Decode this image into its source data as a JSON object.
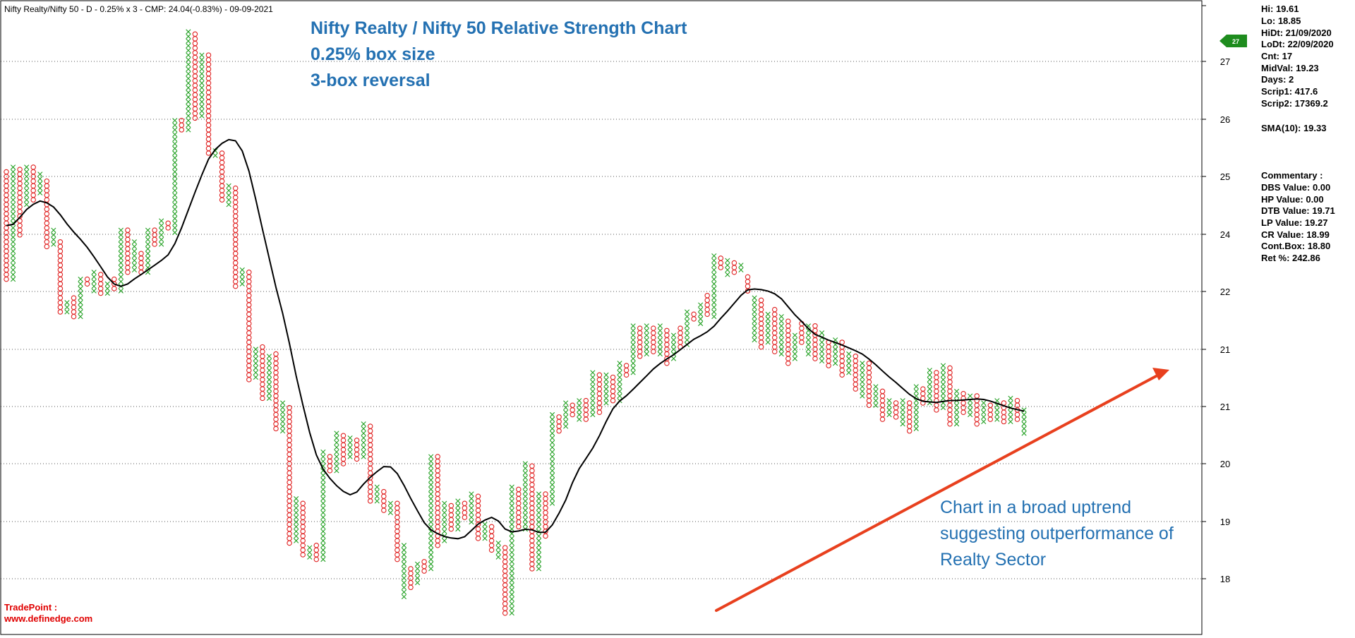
{
  "header": {
    "info_line": "Nifty Realty/Nifty 50 - D - 0.25% x 3 - CMP: 24.04(-0.83%) - 09-09-2021"
  },
  "title_lines": [
    "Nifty Realty / Nifty 50 Relative Strength Chart",
    "0.25% box size",
    "3-box reversal"
  ],
  "annotation_lines": [
    "Chart in a broad uptrend",
    "suggesting outperformance of",
    "Realty Sector"
  ],
  "brand_lines": [
    "TradePoint :",
    "www.definedge.com"
  ],
  "cmp_tag": "27",
  "stats": {
    "hi": "Hi: 19.61",
    "lo": "Lo: 18.85",
    "hidt": "HiDt: 21/09/2020",
    "lodt": "LoDt: 22/09/2020",
    "cnt": "Cnt: 17",
    "midval": "MidVal: 19.23",
    "days": "Days: 2",
    "scrip1": "Scrip1: 417.6",
    "scrip2": "Scrip2: 17369.2",
    "sma": "SMA(10): 19.33"
  },
  "commentary": {
    "heading": "Commentary :",
    "dbs": "DBS Value:  0.00",
    "hp": "HP Value: 0.00",
    "dtb": "DTB Value: 19.71",
    "lp": "LP Value: 19.27",
    "cr": "CR Value: 18.99",
    "cont": "Cont.Box: 18.80",
    "ret": "Ret %: 242.86"
  },
  "colors": {
    "x_column": "#22a022",
    "o_column": "#e02020",
    "sma_line": "#000000",
    "arrow": "#e8401e",
    "title": "#2471b2",
    "brand": "#e00000",
    "tag": "#1e8c1e"
  },
  "chart_data": {
    "type": "point-and-figure",
    "box_size": "0.25%",
    "reversal": 3,
    "y_ticks": [
      "27",
      "26",
      "25",
      "24",
      "22",
      "21",
      "21",
      "20",
      "19",
      "18"
    ],
    "grid": true,
    "columns": [
      {
        "type": "O",
        "high": 24.5,
        "low": 22.2
      },
      {
        "type": "X",
        "high": 24.6,
        "low": 22.2
      },
      {
        "type": "O",
        "high": 24.55,
        "low": 23.1
      },
      {
        "type": "X",
        "high": 24.6,
        "low": 23.8
      },
      {
        "type": "O",
        "high": 24.6,
        "low": 23.9
      },
      {
        "type": "X",
        "high": 24.45,
        "low": 24.0
      },
      {
        "type": "O",
        "high": 24.3,
        "low": 22.9
      },
      {
        "type": "X",
        "high": 23.25,
        "low": 23.0
      },
      {
        "type": "O",
        "high": 23.0,
        "low": 21.5
      },
      {
        "type": "X",
        "high": 21.7,
        "low": 21.5
      },
      {
        "type": "O",
        "high": 21.8,
        "low": 21.45
      },
      {
        "type": "X",
        "high": 22.2,
        "low": 21.45
      },
      {
        "type": "O",
        "high": 22.2,
        "low": 22.05
      },
      {
        "type": "X",
        "high": 22.35,
        "low": 22.0
      },
      {
        "type": "O",
        "high": 22.3,
        "low": 21.95
      },
      {
        "type": "X",
        "high": 22.1,
        "low": 21.95
      },
      {
        "type": "O",
        "high": 22.2,
        "low": 22.0
      },
      {
        "type": "X",
        "high": 23.25,
        "low": 22.0
      },
      {
        "type": "O",
        "high": 23.25,
        "low": 22.3
      },
      {
        "type": "X",
        "high": 23.0,
        "low": 22.35
      },
      {
        "type": "O",
        "high": 22.75,
        "low": 22.4
      },
      {
        "type": "X",
        "high": 23.25,
        "low": 22.4
      },
      {
        "type": "O",
        "high": 23.25,
        "low": 22.95
      },
      {
        "type": "X",
        "high": 23.45,
        "low": 22.95
      },
      {
        "type": "O",
        "high": 23.4,
        "low": 23.25
      },
      {
        "type": "X",
        "high": 25.6,
        "low": 23.25
      },
      {
        "type": "O",
        "high": 25.6,
        "low": 25.4
      },
      {
        "type": "X",
        "high": 27.5,
        "low": 25.4
      },
      {
        "type": "O",
        "high": 27.45,
        "low": 25.7
      },
      {
        "type": "X",
        "high": 27.0,
        "low": 25.7
      },
      {
        "type": "O",
        "high": 27.0,
        "low": 24.95
      },
      {
        "type": "X",
        "high": 24.95,
        "low": 24.85
      },
      {
        "type": "O",
        "high": 24.9,
        "low": 23.9
      },
      {
        "type": "X",
        "high": 24.2,
        "low": 23.8
      },
      {
        "type": "O",
        "high": 24.15,
        "low": 22.0
      },
      {
        "type": "X",
        "high": 22.4,
        "low": 22.05
      },
      {
        "type": "O",
        "high": 22.35,
        "low": 20.05
      },
      {
        "type": "X",
        "high": 20.7,
        "low": 20.1
      },
      {
        "type": "O",
        "high": 20.75,
        "low": 19.65
      },
      {
        "type": "X",
        "high": 20.55,
        "low": 19.6
      },
      {
        "type": "O",
        "high": 20.6,
        "low": 19.0
      },
      {
        "type": "X",
        "high": 19.55,
        "low": 19.0
      },
      {
        "type": "O",
        "high": 19.45,
        "low": 16.55
      },
      {
        "type": "X",
        "high": 17.5,
        "low": 16.55
      },
      {
        "type": "O",
        "high": 17.4,
        "low": 16.3
      },
      {
        "type": "X",
        "high": 16.45,
        "low": 16.25
      },
      {
        "type": "O",
        "high": 16.5,
        "low": 16.25
      },
      {
        "type": "X",
        "high": 18.5,
        "low": 16.25
      },
      {
        "type": "O",
        "high": 18.4,
        "low": 18.05
      },
      {
        "type": "X",
        "high": 18.9,
        "low": 18.1
      },
      {
        "type": "O",
        "high": 18.85,
        "low": 18.3
      },
      {
        "type": "X",
        "high": 18.8,
        "low": 18.35
      },
      {
        "type": "O",
        "high": 18.75,
        "low": 18.4
      },
      {
        "type": "X",
        "high": 19.1,
        "low": 18.4
      },
      {
        "type": "O",
        "high": 19.05,
        "low": 17.5
      },
      {
        "type": "X",
        "high": 17.75,
        "low": 17.45
      },
      {
        "type": "O",
        "high": 17.65,
        "low": 17.2
      },
      {
        "type": "X",
        "high": 17.4,
        "low": 17.2
      },
      {
        "type": "O",
        "high": 17.4,
        "low": 16.2
      },
      {
        "type": "X",
        "high": 16.5,
        "low": 15.45
      },
      {
        "type": "O",
        "high": 16.0,
        "low": 15.55
      },
      {
        "type": "X",
        "high": 16.1,
        "low": 15.75
      },
      {
        "type": "O",
        "high": 16.15,
        "low": 15.95
      },
      {
        "type": "X",
        "high": 18.4,
        "low": 16.0
      },
      {
        "type": "O",
        "high": 18.4,
        "low": 16.5
      },
      {
        "type": "X",
        "high": 17.4,
        "low": 16.6
      },
      {
        "type": "O",
        "high": 17.35,
        "low": 16.85
      },
      {
        "type": "X",
        "high": 17.45,
        "low": 16.85
      },
      {
        "type": "O",
        "high": 17.4,
        "low": 17.05
      },
      {
        "type": "X",
        "high": 17.6,
        "low": 17.05
      },
      {
        "type": "O",
        "high": 17.55,
        "low": 16.7
      },
      {
        "type": "X",
        "high": 16.95,
        "low": 16.65
      },
      {
        "type": "O",
        "high": 16.9,
        "low": 16.35
      },
      {
        "type": "X",
        "high": 16.55,
        "low": 16.3
      },
      {
        "type": "O",
        "high": 16.45,
        "low": 15.0
      },
      {
        "type": "X",
        "high": 17.75,
        "low": 15.05
      },
      {
        "type": "O",
        "high": 17.7,
        "low": 16.85
      },
      {
        "type": "X",
        "high": 18.25,
        "low": 16.8
      },
      {
        "type": "O",
        "high": 18.2,
        "low": 16.0
      },
      {
        "type": "X",
        "high": 17.6,
        "low": 16.0
      },
      {
        "type": "O",
        "high": 17.6,
        "low": 16.7
      },
      {
        "type": "X",
        "high": 19.3,
        "low": 17.4
      },
      {
        "type": "O",
        "high": 19.25,
        "low": 19.0
      },
      {
        "type": "X",
        "high": 19.55,
        "low": 19.05
      },
      {
        "type": "O",
        "high": 19.5,
        "low": 19.3
      },
      {
        "type": "X",
        "high": 19.6,
        "low": 19.25
      },
      {
        "type": "O",
        "high": 19.6,
        "low": 19.25
      },
      {
        "type": "X",
        "high": 20.2,
        "low": 19.3
      },
      {
        "type": "O",
        "high": 20.15,
        "low": 19.4
      },
      {
        "type": "X",
        "high": 20.15,
        "low": 19.55
      },
      {
        "type": "O",
        "high": 20.1,
        "low": 19.6
      },
      {
        "type": "X",
        "high": 20.4,
        "low": 19.65
      },
      {
        "type": "O",
        "high": 20.35,
        "low": 20.15
      },
      {
        "type": "X",
        "high": 21.2,
        "low": 20.2
      },
      {
        "type": "O",
        "high": 21.15,
        "low": 20.5
      },
      {
        "type": "X",
        "high": 21.2,
        "low": 20.55
      },
      {
        "type": "O",
        "high": 21.15,
        "low": 20.6
      },
      {
        "type": "X",
        "high": 21.2,
        "low": 20.65
      },
      {
        "type": "O",
        "high": 21.1,
        "low": 20.4
      },
      {
        "type": "X",
        "high": 21.0,
        "low": 20.5
      },
      {
        "type": "O",
        "high": 21.15,
        "low": 20.7
      },
      {
        "type": "X",
        "high": 21.5,
        "low": 20.8
      },
      {
        "type": "O",
        "high": 21.45,
        "low": 21.3
      },
      {
        "type": "X",
        "high": 21.65,
        "low": 21.25
      },
      {
        "type": "O",
        "high": 21.85,
        "low": 21.5
      },
      {
        "type": "X",
        "high": 22.7,
        "low": 21.45
      },
      {
        "type": "O",
        "high": 22.65,
        "low": 22.45
      },
      {
        "type": "X",
        "high": 22.6,
        "low": 22.35
      },
      {
        "type": "O",
        "high": 22.55,
        "low": 22.35
      },
      {
        "type": "X",
        "high": 22.5,
        "low": 22.35
      },
      {
        "type": "O",
        "high": 22.25,
        "low": 21.95
      },
      {
        "type": "X",
        "high": 21.8,
        "low": 20.85
      },
      {
        "type": "O",
        "high": 21.75,
        "low": 20.75
      },
      {
        "type": "X",
        "high": 21.45,
        "low": 20.85
      },
      {
        "type": "O",
        "high": 21.55,
        "low": 20.6
      },
      {
        "type": "X",
        "high": 21.4,
        "low": 20.6
      },
      {
        "type": "O",
        "high": 21.3,
        "low": 20.4
      },
      {
        "type": "X",
        "high": 21.0,
        "low": 20.5
      },
      {
        "type": "O",
        "high": 21.25,
        "low": 20.8
      },
      {
        "type": "X",
        "high": 21.2,
        "low": 20.6
      },
      {
        "type": "O",
        "high": 21.2,
        "low": 20.5
      },
      {
        "type": "X",
        "high": 21.05,
        "low": 20.45
      },
      {
        "type": "O",
        "high": 20.85,
        "low": 20.35
      },
      {
        "type": "X",
        "high": 20.9,
        "low": 20.4
      },
      {
        "type": "O",
        "high": 20.85,
        "low": 20.2
      },
      {
        "type": "X",
        "high": 20.6,
        "low": 20.2
      },
      {
        "type": "O",
        "high": 20.55,
        "low": 19.9
      },
      {
        "type": "X",
        "high": 20.4,
        "low": 19.7
      },
      {
        "type": "O",
        "high": 20.4,
        "low": 19.5
      },
      {
        "type": "X",
        "high": 19.9,
        "low": 19.45
      },
      {
        "type": "O",
        "high": 19.8,
        "low": 19.25
      },
      {
        "type": "X",
        "high": 19.6,
        "low": 19.3
      },
      {
        "type": "O",
        "high": 19.55,
        "low": 19.3
      },
      {
        "type": "X",
        "high": 19.6,
        "low": 19.15
      },
      {
        "type": "O",
        "high": 19.55,
        "low": 19.0
      },
      {
        "type": "X",
        "high": 19.9,
        "low": 19.0
      },
      {
        "type": "O",
        "high": 19.85,
        "low": 19.55
      },
      {
        "type": "X",
        "high": 20.25,
        "low": 19.55
      },
      {
        "type": "O",
        "high": 20.2,
        "low": 19.45
      },
      {
        "type": "X",
        "high": 20.35,
        "low": 19.45
      },
      {
        "type": "O",
        "high": 20.3,
        "low": 19.15
      },
      {
        "type": "X",
        "high": 19.8,
        "low": 19.1
      },
      {
        "type": "O",
        "high": 19.75,
        "low": 19.3
      },
      {
        "type": "X",
        "high": 19.7,
        "low": 19.3
      },
      {
        "type": "O",
        "high": 19.7,
        "low": 19.1
      },
      {
        "type": "X",
        "high": 19.55,
        "low": 19.1
      },
      {
        "type": "O",
        "high": 19.5,
        "low": 19.2
      },
      {
        "type": "X",
        "high": 19.6,
        "low": 19.2
      },
      {
        "type": "O",
        "high": 19.55,
        "low": 19.1
      },
      {
        "type": "X",
        "high": 19.65,
        "low": 19.15
      },
      {
        "type": "O",
        "high": 19.6,
        "low": 19.2
      },
      {
        "type": "X",
        "high": 19.4,
        "low": 18.85
      }
    ],
    "sma_label": "SMA(10): 19.33"
  }
}
